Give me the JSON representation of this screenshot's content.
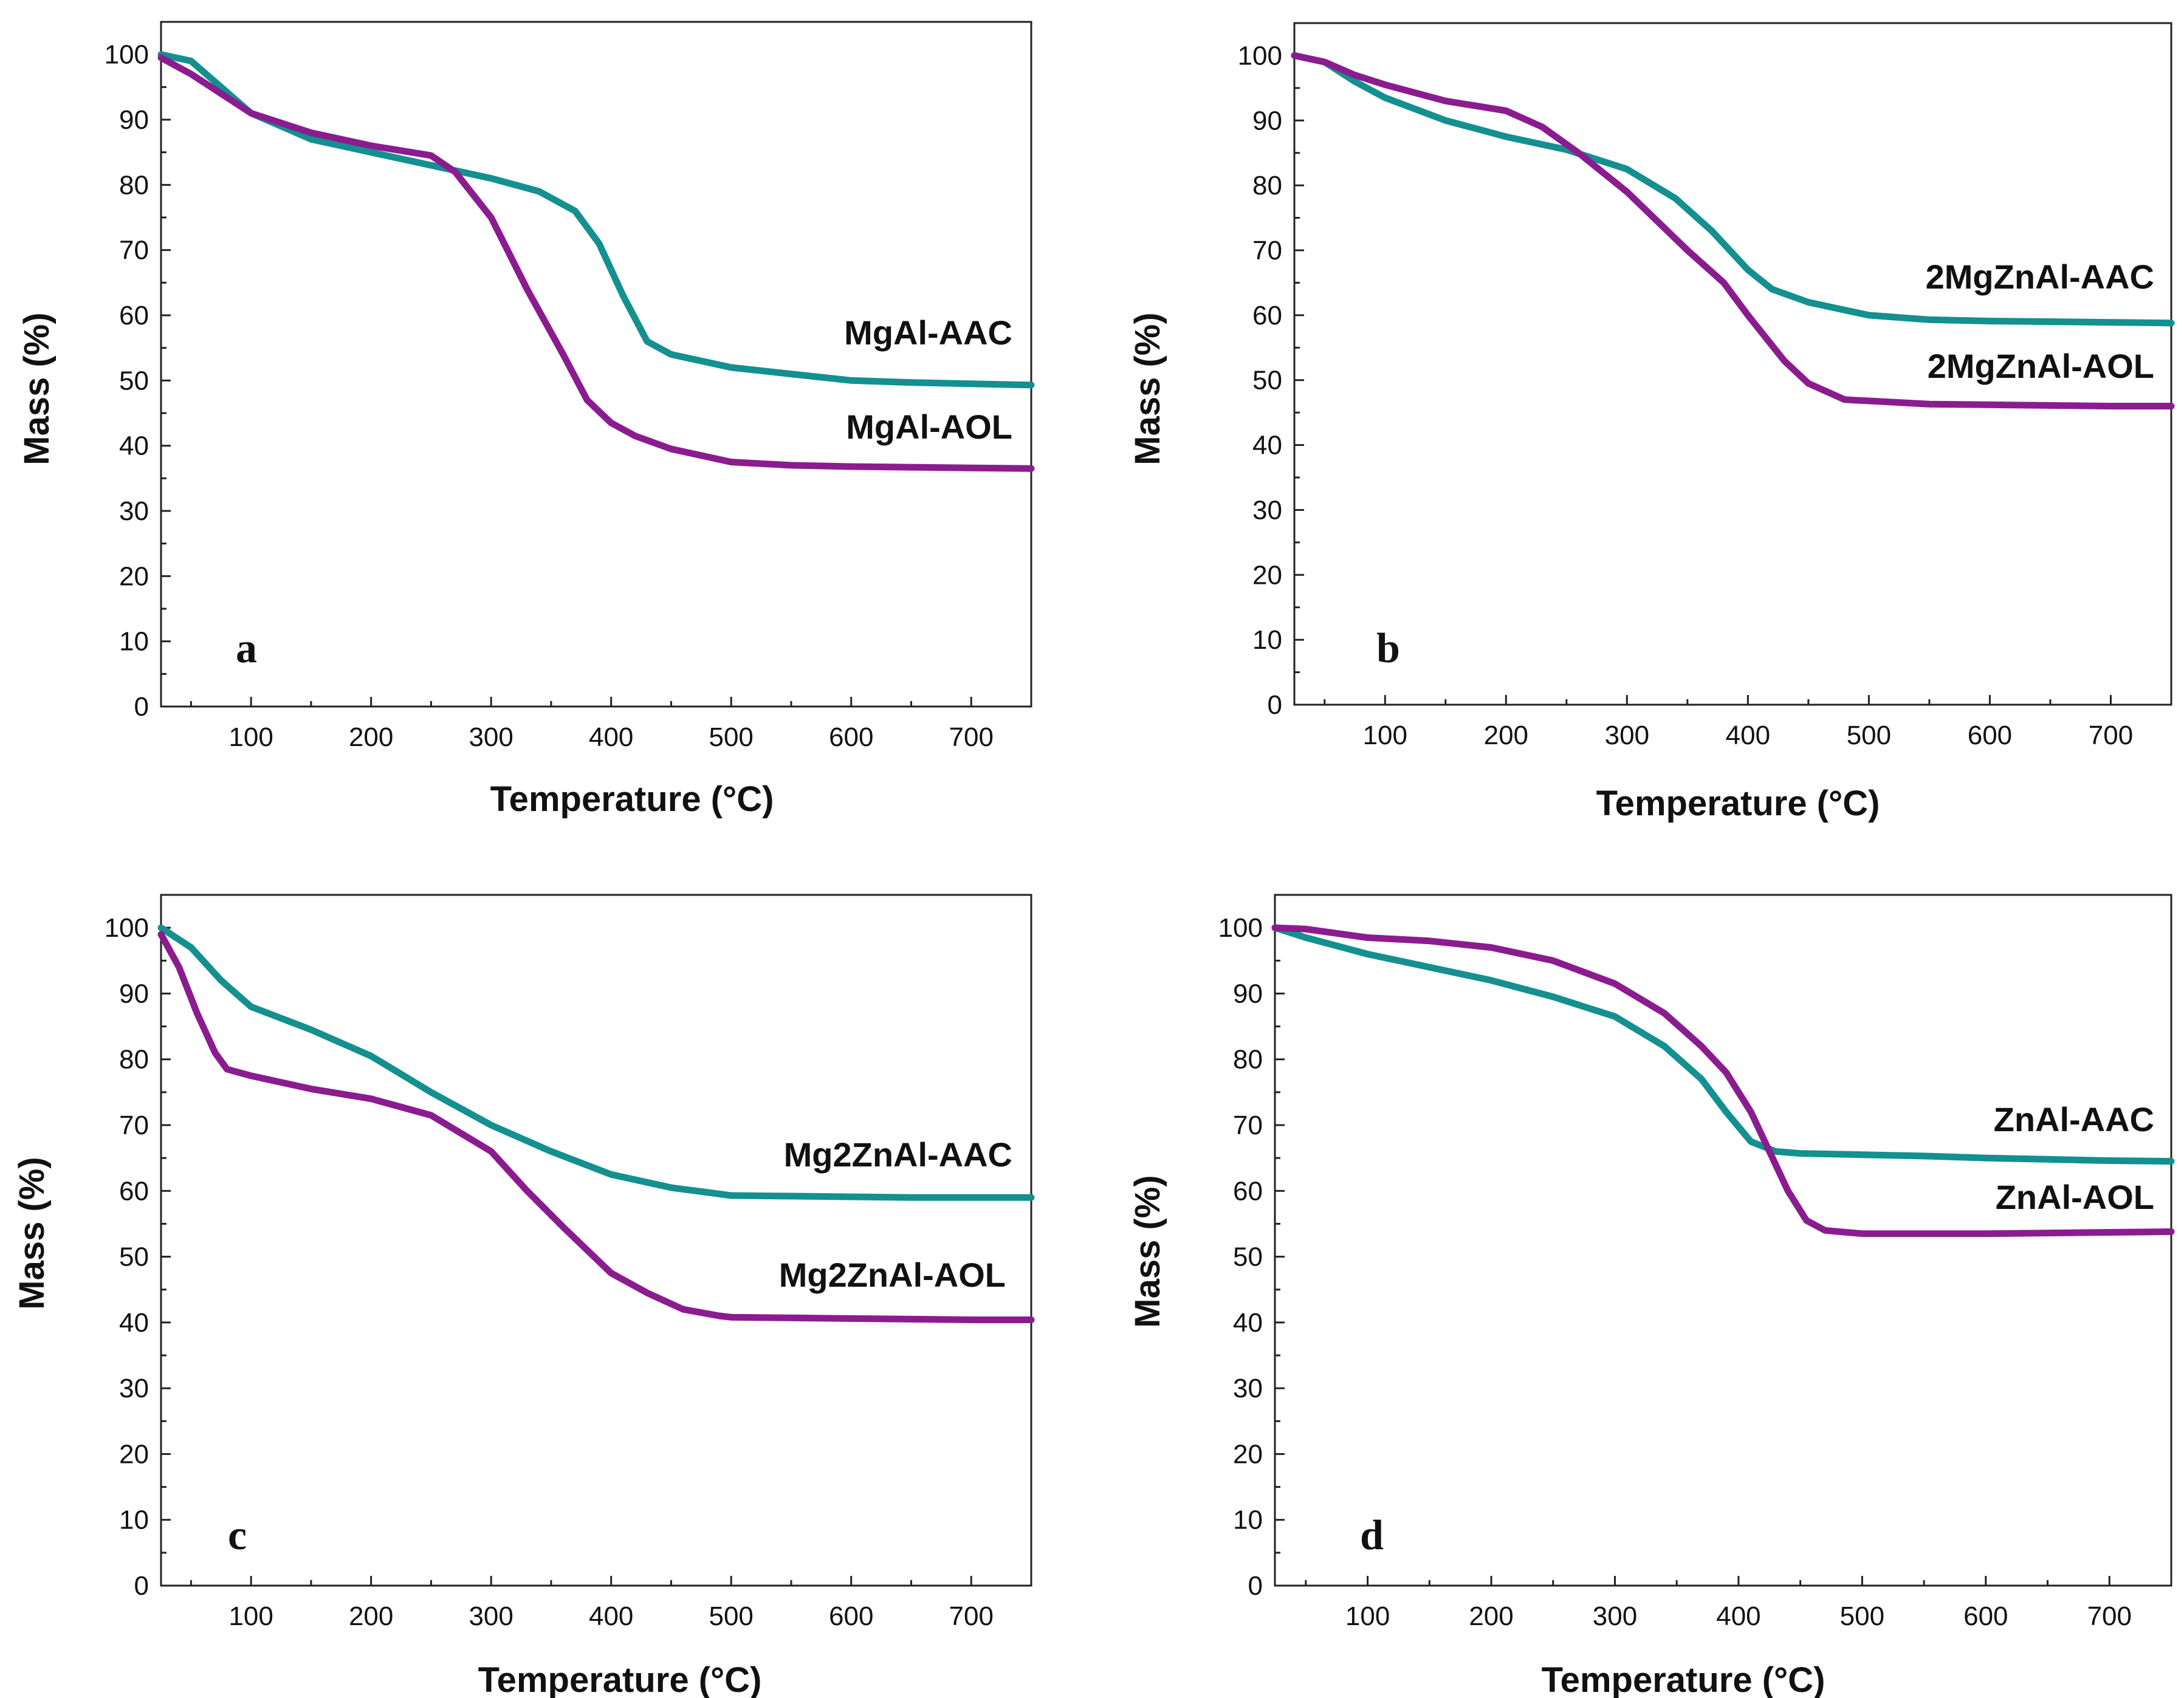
{
  "colors": {
    "aac": "#13908F",
    "aol": "#8B1C8F"
  },
  "chart_data": [
    {
      "type": "line",
      "panel": "a",
      "xlabel": "Temperature (°C)",
      "ylabel": "Mass (%)",
      "xlim": [
        25,
        750
      ],
      "ylim": [
        0,
        105
      ],
      "xticks": [
        100,
        200,
        300,
        400,
        500,
        600,
        700
      ],
      "yticks": [
        0,
        10,
        20,
        30,
        40,
        50,
        60,
        70,
        80,
        90,
        100
      ],
      "series": [
        {
          "name": "MgAl-AAC",
          "color": "#13908F",
          "x": [
            25,
            50,
            75,
            100,
            150,
            200,
            250,
            300,
            340,
            370,
            390,
            410,
            430,
            450,
            500,
            550,
            600,
            650,
            700,
            750
          ],
          "y": [
            100,
            99,
            95,
            91,
            87,
            85,
            83,
            81,
            79,
            76,
            71,
            63,
            56,
            54,
            52,
            51,
            50,
            49.7,
            49.5,
            49.3
          ]
        },
        {
          "name": "MgAl-AOL",
          "color": "#8B1C8F",
          "x": [
            25,
            50,
            75,
            100,
            150,
            200,
            250,
            270,
            300,
            330,
            360,
            380,
            400,
            420,
            450,
            500,
            550,
            600,
            650,
            700,
            750
          ],
          "y": [
            99.5,
            97,
            94,
            91,
            88,
            86,
            84.5,
            82,
            75,
            64,
            54,
            47,
            43.5,
            41.5,
            39.5,
            37.5,
            37,
            36.8,
            36.7,
            36.6,
            36.5
          ]
        }
      ],
      "labels": {
        "aac": "MgAl-AAC",
        "aol": "MgAl-AOL",
        "letter": "a"
      }
    },
    {
      "type": "line",
      "panel": "b",
      "xlabel": "Temperature (°C)",
      "ylabel": "Mass (%)",
      "xlim": [
        25,
        750
      ],
      "ylim": [
        0,
        105
      ],
      "xticks": [
        100,
        200,
        300,
        400,
        500,
        600,
        700
      ],
      "yticks": [
        0,
        10,
        20,
        30,
        40,
        50,
        60,
        70,
        80,
        90,
        100
      ],
      "series": [
        {
          "name": "2MgZnAl-AAC",
          "color": "#13908F",
          "x": [
            25,
            50,
            75,
            100,
            150,
            200,
            250,
            300,
            340,
            370,
            400,
            420,
            450,
            500,
            550,
            600,
            650,
            700,
            750
          ],
          "y": [
            100,
            99,
            96,
            93.5,
            90,
            87.5,
            85.5,
            82.5,
            78,
            73,
            67,
            64,
            62,
            60,
            59.3,
            59.1,
            59,
            58.9,
            58.8
          ]
        },
        {
          "name": "2MgZnAl-AOL",
          "color": "#8B1C8F",
          "x": [
            25,
            50,
            75,
            100,
            150,
            200,
            230,
            260,
            300,
            350,
            380,
            400,
            430,
            450,
            480,
            500,
            550,
            600,
            650,
            700,
            750
          ],
          "y": [
            100,
            99,
            97,
            95.5,
            93,
            91.5,
            89,
            85,
            79,
            70,
            65,
            60,
            53,
            49.5,
            47,
            46.8,
            46.3,
            46.2,
            46.1,
            46,
            46
          ]
        }
      ],
      "labels": {
        "aac": "2MgZnAl-AAC",
        "aol": "2MgZnAl-AOL",
        "letter": "b"
      }
    },
    {
      "type": "line",
      "panel": "c",
      "xlabel": "Temperature (°C)",
      "ylabel": "Mass (%)",
      "xlim": [
        25,
        750
      ],
      "ylim": [
        0,
        105
      ],
      "xticks": [
        100,
        200,
        300,
        400,
        500,
        600,
        700
      ],
      "yticks": [
        0,
        10,
        20,
        30,
        40,
        50,
        60,
        70,
        80,
        90,
        100
      ],
      "series": [
        {
          "name": "Mg2ZnAl-AAC",
          "color": "#13908F",
          "x": [
            25,
            50,
            75,
            100,
            150,
            200,
            250,
            300,
            350,
            400,
            450,
            500,
            550,
            600,
            650,
            700,
            750
          ],
          "y": [
            100,
            97,
            92,
            88,
            84.5,
            80.5,
            75,
            70,
            66,
            62.5,
            60.5,
            59.3,
            59.2,
            59.1,
            59,
            59,
            59
          ]
        },
        {
          "name": "Mg2ZnAl-AOL",
          "color": "#8B1C8F",
          "x": [
            25,
            40,
            55,
            70,
            80,
            100,
            150,
            200,
            250,
            300,
            330,
            360,
            380,
            400,
            430,
            460,
            490,
            500,
            550,
            600,
            650,
            700,
            750
          ],
          "y": [
            99,
            94,
            87,
            81,
            78.5,
            77.5,
            75.5,
            74,
            71.5,
            66,
            60,
            54.5,
            51,
            47.5,
            44.5,
            42,
            41,
            40.8,
            40.7,
            40.6,
            40.5,
            40.4,
            40.4
          ]
        }
      ],
      "labels": {
        "aac": "Mg2ZnAl-AAC",
        "aol": "Mg2ZnAl-AOL",
        "letter": "c"
      }
    },
    {
      "type": "line",
      "panel": "d",
      "xlabel": "Temperature (°C)",
      "ylabel": "Mass (%)",
      "xlim": [
        25,
        750
      ],
      "ylim": [
        0,
        105
      ],
      "xticks": [
        100,
        200,
        300,
        400,
        500,
        600,
        700
      ],
      "yticks": [
        0,
        10,
        20,
        30,
        40,
        50,
        60,
        70,
        80,
        90,
        100
      ],
      "series": [
        {
          "name": "ZnAl-AAC",
          "color": "#13908F",
          "x": [
            25,
            50,
            100,
            150,
            200,
            250,
            300,
            340,
            370,
            390,
            410,
            430,
            450,
            500,
            550,
            600,
            650,
            700,
            750
          ],
          "y": [
            100,
            98.5,
            96,
            94,
            92,
            89.5,
            86.5,
            82,
            77,
            72,
            67.5,
            66,
            65.7,
            65.5,
            65.3,
            65,
            64.8,
            64.6,
            64.5
          ]
        },
        {
          "name": "ZnAl-AOL",
          "color": "#8B1C8F",
          "x": [
            25,
            50,
            100,
            150,
            200,
            250,
            300,
            340,
            370,
            390,
            410,
            425,
            440,
            455,
            470,
            500,
            550,
            600,
            650,
            700,
            750
          ],
          "y": [
            100,
            99.8,
            98.5,
            98,
            97,
            95,
            91.5,
            87,
            82,
            78,
            72,
            66,
            60,
            55.5,
            54,
            53.5,
            53.5,
            53.5,
            53.6,
            53.7,
            53.8
          ]
        }
      ],
      "labels": {
        "aac": "ZnAl-AAC",
        "aol": "ZnAl-AOL",
        "letter": "d"
      }
    }
  ]
}
